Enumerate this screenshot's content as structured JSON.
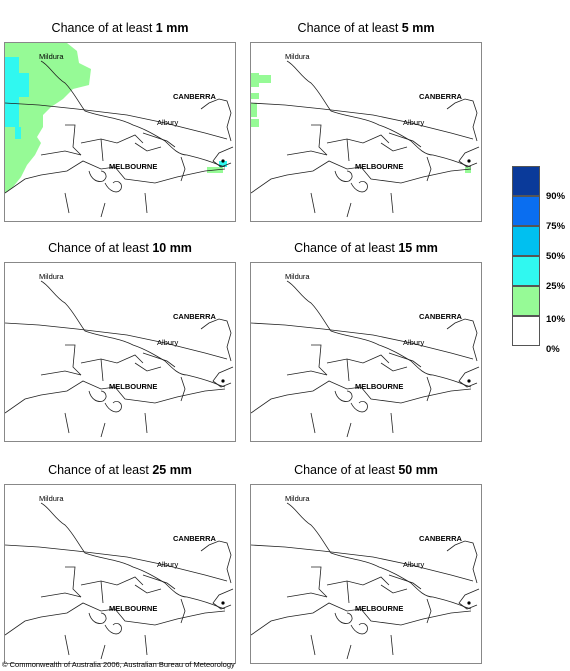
{
  "panels": [
    {
      "prefix": "Chance of at least",
      "amount": "1 mm"
    },
    {
      "prefix": "Chance of at least",
      "amount": "5 mm"
    },
    {
      "prefix": "Chance of at least",
      "amount": "10 mm"
    },
    {
      "prefix": "Chance of at least",
      "amount": "15 mm"
    },
    {
      "prefix": "Chance of at least",
      "amount": "25 mm"
    },
    {
      "prefix": "Chance of at least",
      "amount": "50 mm"
    }
  ],
  "places": {
    "mildura": "Mildura",
    "canberra": "CANBERRA",
    "albury": "Albury",
    "melbourne": "MELBOURNE"
  },
  "legend": {
    "labels": [
      "90%",
      "75%",
      "50%",
      "25%",
      "10%",
      "0%"
    ],
    "colors": [
      "#0a3a9a",
      "#0a6ef0",
      "#00c0f0",
      "#30f8f0",
      "#96fa96",
      "#ffffff"
    ]
  },
  "footer": "© Commonwealth of Australia 2006, Australian Bureau of Meteorology"
}
